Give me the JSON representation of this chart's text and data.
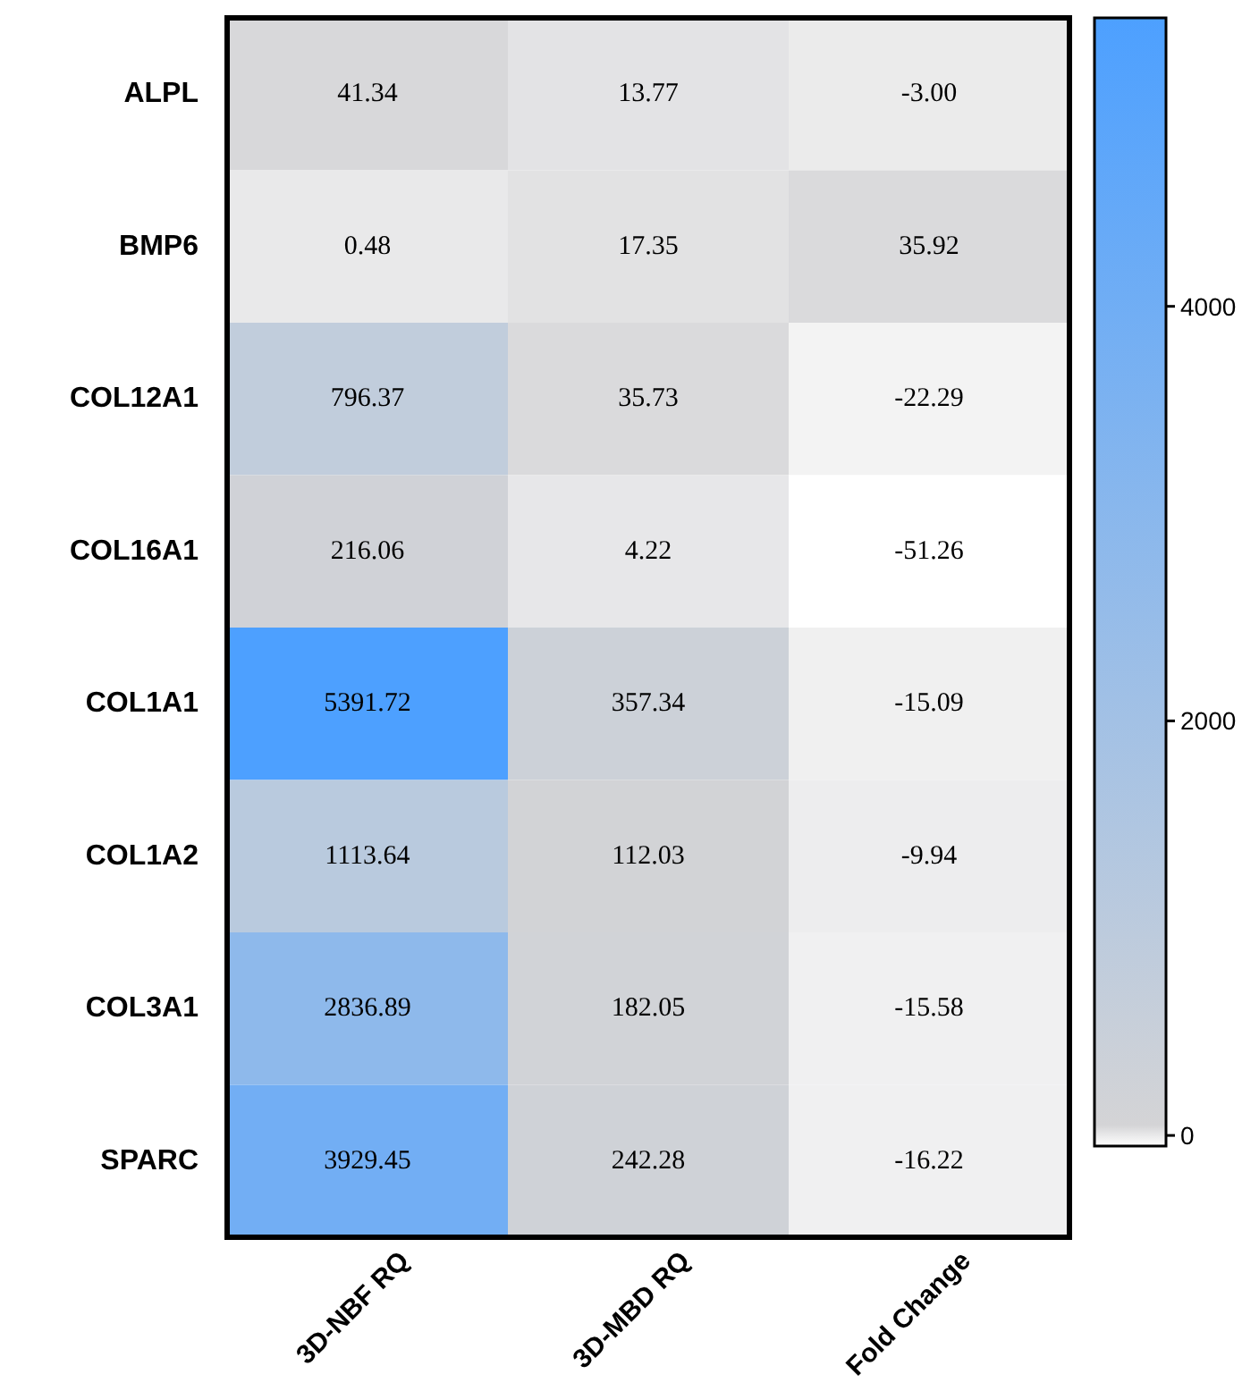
{
  "chart_data": {
    "type": "heatmap",
    "categories": [
      "3D-NBF RQ",
      "3D-MBD RQ",
      "Fold Change"
    ],
    "y_categories": [
      "ALPL",
      "BMP6",
      "COL12A1",
      "COL16A1",
      "COL1A1",
      "COL1A2",
      "COL3A1",
      "SPARC"
    ],
    "cells": [
      [
        41.34,
        13.77,
        -3.0
      ],
      [
        0.48,
        17.35,
        35.92
      ],
      [
        796.37,
        35.73,
        -22.29
      ],
      [
        216.06,
        4.22,
        -51.26
      ],
      [
        5391.72,
        357.34,
        -15.09
      ],
      [
        1113.64,
        112.03,
        -9.94
      ],
      [
        2836.89,
        182.05,
        -15.58
      ],
      [
        3929.45,
        242.28,
        -16.22
      ]
    ],
    "cell_labels": [
      [
        "41.34",
        "13.77",
        "-3.00"
      ],
      [
        "0.48",
        "17.35",
        "35.92"
      ],
      [
        "796.37",
        "35.73",
        "-22.29"
      ],
      [
        "216.06",
        "4.22",
        "-51.26"
      ],
      [
        "5391.72",
        "357.34",
        "-15.09"
      ],
      [
        "1113.64",
        "112.03",
        "-9.94"
      ],
      [
        "2836.89",
        "182.05",
        "-15.58"
      ],
      [
        "3929.45",
        "242.28",
        "-16.22"
      ]
    ],
    "clim": [
      -51.26,
      5391.72
    ],
    "cticks": [
      0,
      2000,
      4000
    ]
  }
}
